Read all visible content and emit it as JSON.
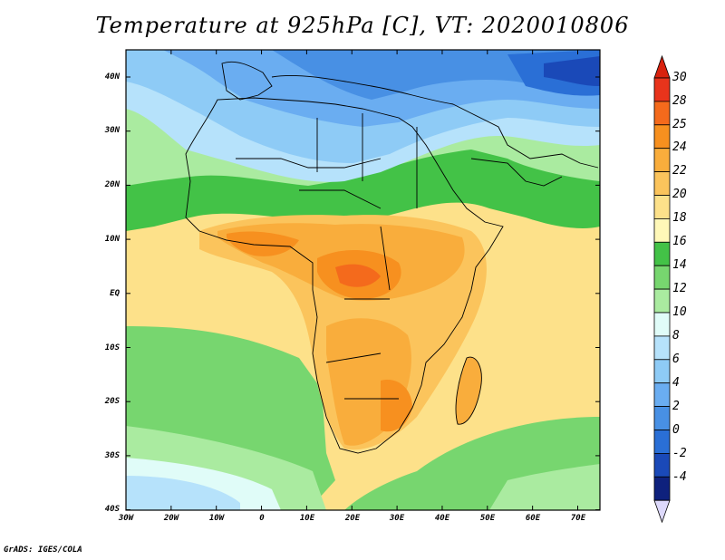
{
  "title": "Temperature at 925hPa [C], VT: 2020010806",
  "credit": "GrADS: IGES/COLA",
  "map": {
    "lat_labels": [
      "40N",
      "30N",
      "20N",
      "10N",
      "EQ",
      "10S",
      "20S",
      "30S",
      "40S"
    ],
    "lon_labels": [
      "30W",
      "20W",
      "10W",
      "0",
      "10E",
      "20E",
      "30E",
      "40E",
      "50E",
      "60E",
      "70E"
    ]
  },
  "colorbar": {
    "labels": [
      "30",
      "28",
      "25",
      "24",
      "22",
      "20",
      "18",
      "16",
      "14",
      "12",
      "10",
      "8",
      "6",
      "4",
      "2",
      "0",
      "-2",
      "-4"
    ],
    "colors": [
      "#e8341c",
      "#f46a1c",
      "#f7901f",
      "#f9ad3c",
      "#fbc45c",
      "#fde18a",
      "#fff8b8",
      "#43c247",
      "#77d66f",
      "#aaeba0",
      "#e0fcf8",
      "#b6e2fb",
      "#8ecbf6",
      "#6aadf1",
      "#4890e4",
      "#2a6fd6",
      "#1a49b8",
      "#0e217d"
    ],
    "top_arrow_color": "#d8220e",
    "bottom_arrow_color": "#ddd9fb"
  }
}
